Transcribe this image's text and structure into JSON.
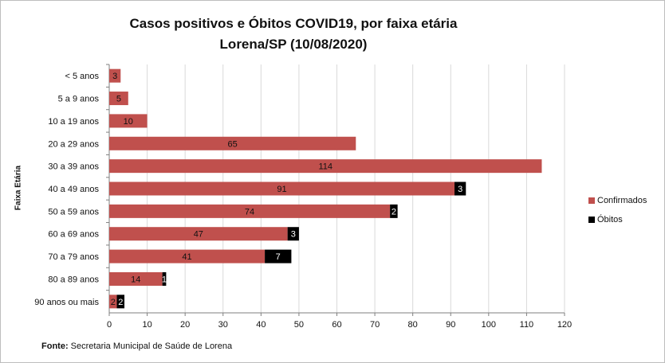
{
  "chart_data": {
    "type": "bar",
    "orientation": "horizontal",
    "stacked": true,
    "title": "Casos positivos  e Óbitos COVID19, por faixa etária",
    "subtitle": "Lorena/SP (10/08/2020)",
    "xlabel": "",
    "ylabel": "Faixa Etária",
    "xlim": [
      0,
      120
    ],
    "xticks": [
      0,
      10,
      20,
      30,
      40,
      50,
      60,
      70,
      80,
      90,
      100,
      110,
      120
    ],
    "grid": true,
    "legend_position": "right",
    "categories": [
      "< 5 anos",
      "5 a 9 anos",
      "10 a 19 anos",
      "20 a 29 anos",
      "30 a 39 anos",
      "40 a 49 anos",
      "50 a 59 anos",
      "60 a 69 anos",
      "70 a 79 anos",
      "80 a 89 anos",
      "90 anos ou mais"
    ],
    "series": [
      {
        "name": "Confirmados",
        "color": "#c0504d",
        "values": [
          3,
          5,
          10,
          65,
          114,
          91,
          74,
          47,
          41,
          14,
          2
        ]
      },
      {
        "name": "Óbitos",
        "color": "#000000",
        "values": [
          0,
          0,
          0,
          0,
          0,
          3,
          2,
          3,
          7,
          1,
          2
        ]
      }
    ]
  },
  "source": {
    "label": "Fonte:",
    "text": " Secretaria Municipal de Saúde de Lorena"
  },
  "colors": {
    "gridline": "#d9d9d9",
    "axis": "#7f7f7f",
    "text": "#111111"
  }
}
